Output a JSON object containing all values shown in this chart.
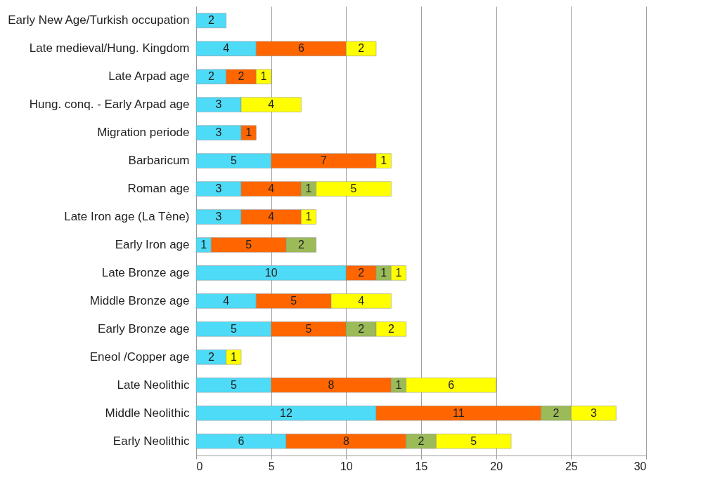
{
  "chart_data": {
    "type": "bar",
    "orientation": "horizontal",
    "stacked": true,
    "data_labels": true,
    "grid": "x",
    "legend": false,
    "categories": [
      "Early New Age/Turkish occupation",
      "Late medieval/Hung. Kingdom",
      "Late Arpad age",
      "Hung. conq. - Early Arpad age",
      "Migration periode",
      "Barbaricum",
      "Roman age",
      "Late Iron age (La Tène)",
      "Early Iron age",
      "Late Bronze age",
      "Middle Bronze age",
      "Early Bronze age",
      "Eneol /Copper age",
      "Late Neolithic",
      "Middle Neolithic",
      "Early Neolithic"
    ],
    "series": [
      {
        "color": "#4ddbf7",
        "values": [
          2,
          4,
          2,
          3,
          3,
          5,
          3,
          3,
          1,
          10,
          4,
          5,
          2,
          5,
          12,
          6
        ]
      },
      {
        "color": "#ff6600",
        "values": [
          null,
          6,
          2,
          null,
          1,
          7,
          4,
          4,
          5,
          2,
          5,
          5,
          null,
          8,
          11,
          8
        ]
      },
      {
        "color": "#9bbb59",
        "values": [
          null,
          null,
          null,
          null,
          null,
          null,
          1,
          null,
          2,
          1,
          null,
          2,
          null,
          1,
          2,
          2
        ]
      },
      {
        "color": "#ffff00",
        "values": [
          null,
          2,
          1,
          4,
          null,
          1,
          5,
          1,
          null,
          1,
          4,
          2,
          1,
          6,
          3,
          5
        ]
      }
    ],
    "xlim": [
      0,
      30
    ],
    "xticks": [
      0,
      5,
      10,
      15,
      20,
      25,
      30
    ]
  }
}
